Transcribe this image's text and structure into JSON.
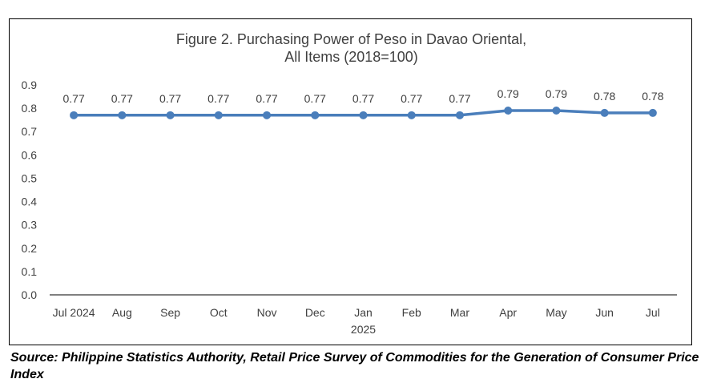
{
  "figure": {
    "title_line1": "Figure 2. Purchasing Power of Peso in Davao Oriental,",
    "title_line2": "All Items (2018=100)"
  },
  "source_note": "Source: Philippine Statistics Authority, Retail Price Survey of Commodities for the Generation of Consumer Price Index",
  "colors": {
    "series": "#4a7ebb",
    "axis": "#000000",
    "text": "#404040"
  },
  "chart_data": {
    "type": "line",
    "title": "Figure 2. Purchasing Power of Peso in Davao Oriental, All Items (2018=100)",
    "categories": [
      "Jul 2024",
      "Aug",
      "Sep",
      "Oct",
      "Nov",
      "Dec",
      "Jan",
      "Feb",
      "Mar",
      "Apr",
      "May",
      "Jun",
      "Jul"
    ],
    "category_sublabels": [
      "",
      "",
      "",
      "",
      "",
      "",
      "2025",
      "",
      "",
      "",
      "",
      "",
      ""
    ],
    "series": [
      {
        "values": [
          0.77,
          0.77,
          0.77,
          0.77,
          0.77,
          0.77,
          0.77,
          0.77,
          0.77,
          0.79,
          0.79,
          0.78,
          0.78
        ],
        "labels": [
          "0.77",
          "0.77",
          "0.77",
          "0.77",
          "0.77",
          "0.77",
          "0.77",
          "0.77",
          "0.77",
          "0.79",
          "0.79",
          "0.78",
          "0.78"
        ]
      }
    ],
    "yticks": [
      "0.0",
      "0.1",
      "0.2",
      "0.3",
      "0.4",
      "0.5",
      "0.6",
      "0.7",
      "0.8",
      "0.9"
    ],
    "ylim": [
      0,
      0.9
    ],
    "xlabel": "",
    "ylabel": "",
    "grid": false,
    "legend": "none"
  }
}
